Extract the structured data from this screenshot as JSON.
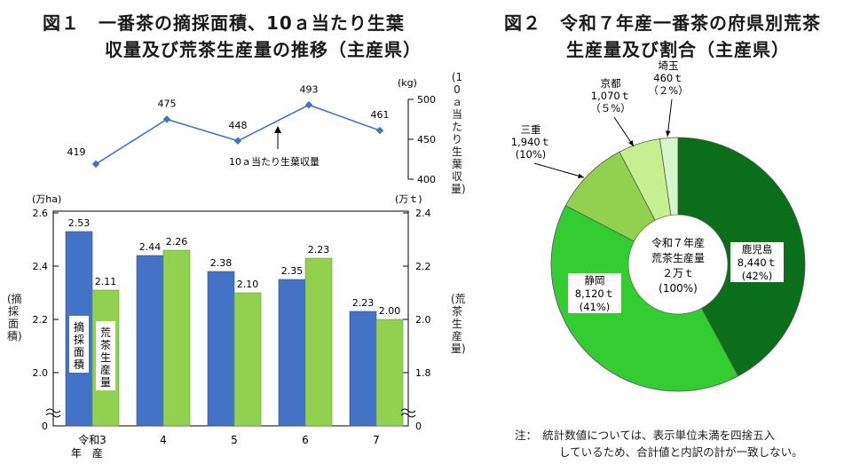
{
  "fig1": {
    "title_line1": "図１　一番茶の摘採面積、10ａ当たり生葉",
    "title_line2": "収量及び荒茶生産量の推移（主産県）",
    "line_unit": "(kg)",
    "line_axis_label": "(10ａ当たり生葉収量)",
    "line_annotation": "10ａ当たり生葉収量",
    "area_unit": "(万ha)",
    "prod_unit": "(万ｔ)",
    "area_axis_label": "(摘採面積)",
    "prod_axis_label": "(荒茶生産量)",
    "bar_label_area": "摘採面積",
    "bar_label_prod": "荒茶生産量",
    "year_caption": "年　産"
  },
  "fig2": {
    "title_line1": "図２　令和７年産一番茶の府県別荒茶",
    "title_line2": "生産量及び割合（主産県）",
    "center_line1": "令和７年産",
    "center_line2": "荒茶生産量",
    "center_line3": "２万ｔ",
    "center_line4": "(100%)"
  },
  "note_line1": "注：　統計数値については、表示単位未満を四捨五入",
  "note_line2": "しているため、合計値と内訳の計が一致しない。",
  "colors": {
    "area_bar": "#4472c4",
    "prod_bar": "#92d050",
    "line": "#4472c4",
    "pie": [
      "#0a6e1a",
      "#33cc33",
      "#92d050",
      "#c4f090",
      "#d6f5c8"
    ]
  },
  "chart_data": [
    {
      "type": "line",
      "categories": [
        "令和3",
        "4",
        "5",
        "6",
        "7"
      ],
      "series": [
        {
          "name": "10ａ当たり生葉収量",
          "values": [
            419,
            475,
            448,
            493,
            461
          ]
        }
      ],
      "yunit": "(kg)",
      "ylim": [
        400,
        500
      ],
      "yticks": [
        400,
        450,
        500
      ]
    },
    {
      "type": "bar",
      "categories": [
        "令和3",
        "4",
        "5",
        "6",
        "7"
      ],
      "series": [
        {
          "name": "摘採面積",
          "axis": "left",
          "values": [
            2.53,
            2.44,
            2.38,
            2.35,
            2.23
          ],
          "labels": [
            "2.53",
            "2.44",
            "2.38",
            "2.35",
            "2.23"
          ]
        },
        {
          "name": "荒茶生産量",
          "axis": "right",
          "values": [
            2.11,
            2.26,
            2.1,
            2.23,
            2.0
          ],
          "labels": [
            "2.11",
            "2.26",
            "2.10",
            "2.23",
            "2.00"
          ]
        }
      ],
      "left_axis": {
        "unit": "(万ha)",
        "ylim": [
          1.8,
          2.6
        ],
        "ticks": [
          "2.0",
          "2.2",
          "2.4",
          "2.6"
        ],
        "zero_label": "0",
        "broken": true
      },
      "right_axis": {
        "unit": "(万ｔ)",
        "ylim": [
          1.6,
          2.4
        ],
        "ticks": [
          "1.8",
          "2.0",
          "2.2",
          "2.4"
        ],
        "zero_label": "0",
        "broken": true
      },
      "xlabel": "年　産"
    },
    {
      "type": "pie",
      "slices": [
        {
          "name": "鹿児島",
          "value": 8440,
          "value_text": "8,440ｔ",
          "pct": 42,
          "pct_text": "(42%)"
        },
        {
          "name": "静岡",
          "value": 8120,
          "value_text": "8,120ｔ",
          "pct": 41,
          "pct_text": "(41%)"
        },
        {
          "name": "三重",
          "value": 1940,
          "value_text": "1,940ｔ",
          "pct": 10,
          "pct_text": "(10%)"
        },
        {
          "name": "京都",
          "value": 1070,
          "value_text": "1,070ｔ",
          "pct": 5,
          "pct_text": "（５%）"
        },
        {
          "name": "埼玉",
          "value": 460,
          "value_text": "460ｔ",
          "pct": 2,
          "pct_text": "（２%）"
        }
      ],
      "total_text": "２万ｔ"
    }
  ]
}
